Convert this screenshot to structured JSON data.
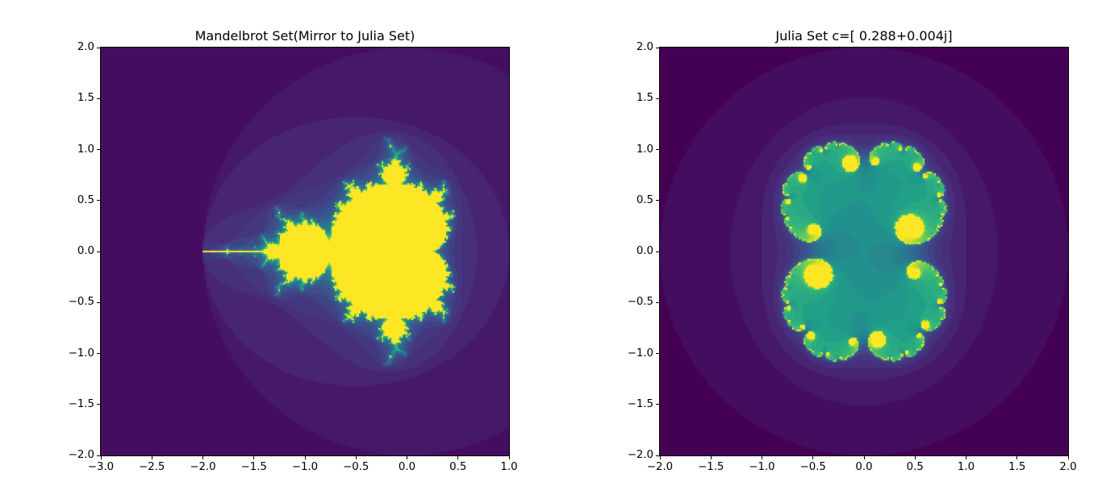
{
  "figure": {
    "background": "#ffffff",
    "colormap": "viridis"
  },
  "chart_data": [
    {
      "type": "heatmap",
      "title": "Mandelbrot Set(Mirror to Julia Set)",
      "xlabel": "",
      "ylabel": "",
      "xlim": [
        -3.0,
        1.0
      ],
      "ylim": [
        -2.0,
        2.0
      ],
      "x_ticks": [
        "−3.0",
        "−2.5",
        "−2.0",
        "−1.5",
        "−1.0",
        "−0.5",
        "0.0",
        "0.5",
        "1.0"
      ],
      "x_tick_values": [
        -3.0,
        -2.5,
        -2.0,
        -1.5,
        -1.0,
        -0.5,
        0.0,
        0.5,
        1.0
      ],
      "y_ticks": [
        "2.0",
        "1.5",
        "1.0",
        "0.5",
        "0.0",
        "−0.5",
        "−1.0",
        "−1.5",
        "−2.0"
      ],
      "y_tick_values": [
        2.0,
        1.5,
        1.0,
        0.5,
        0.0,
        -0.5,
        -1.0,
        -1.5,
        -2.0
      ],
      "fractal": "mandelbrot",
      "max_iter": 30,
      "grid": false,
      "legend": null
    },
    {
      "type": "heatmap",
      "title": "Julia Set c=[ 0.288+0.004j]",
      "xlabel": "",
      "ylabel": "",
      "xlim": [
        -2.0,
        2.0
      ],
      "ylim": [
        -2.0,
        2.0
      ],
      "x_ticks": [
        "−2.0",
        "−1.5",
        "−1.0",
        "−0.5",
        "0.0",
        "0.5",
        "1.0",
        "1.5",
        "2.0"
      ],
      "x_tick_values": [
        -2.0,
        -1.5,
        -1.0,
        -0.5,
        0.0,
        0.5,
        1.0,
        1.5,
        2.0
      ],
      "y_ticks": [
        "2.0",
        "1.5",
        "1.0",
        "0.5",
        "0.0",
        "−0.5",
        "−1.0",
        "−1.5",
        "−2.0"
      ],
      "y_tick_values": [
        2.0,
        1.5,
        1.0,
        0.5,
        0.0,
        -0.5,
        -1.0,
        -1.5,
        -2.0
      ],
      "fractal": "julia",
      "c": [
        0.288,
        0.004
      ],
      "max_iter": 30,
      "grid": false,
      "legend": null
    }
  ],
  "viridis_stops": [
    "#440154",
    "#482878",
    "#3e4989",
    "#31688e",
    "#26828e",
    "#1f9e89",
    "#35b779",
    "#6ece58",
    "#b5de2b",
    "#fde725"
  ]
}
